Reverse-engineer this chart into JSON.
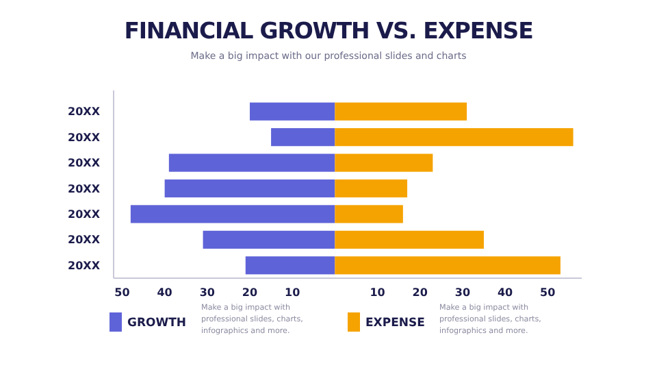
{
  "chart_data": {
    "type": "bar",
    "orientation": "horizontal",
    "stacked": true,
    "title": "FINANCIAL GROWTH VS. EXPENSE",
    "subtitle": "Make a big impact with our professional slides and charts",
    "categories": [
      "20XX",
      "20XX",
      "20XX",
      "20XX",
      "20XX",
      "20XX",
      "20XX"
    ],
    "series": [
      {
        "name": "GROWTH",
        "color": "#5f63d8",
        "values": [
          -20,
          -15,
          -39,
          -40,
          -48,
          -31,
          -21
        ]
      },
      {
        "name": "EXPENSE",
        "color": "#f5a300",
        "values": [
          31,
          56,
          23,
          17,
          16,
          35,
          53
        ]
      }
    ],
    "xlim": [
      -52,
      58
    ],
    "xticks": [
      {
        "value": -50,
        "label": "50"
      },
      {
        "value": -40,
        "label": "40"
      },
      {
        "value": -30,
        "label": "30"
      },
      {
        "value": -20,
        "label": "20"
      },
      {
        "value": -10,
        "label": "10"
      },
      10,
      20,
      30,
      40,
      50
    ],
    "legend": "bottom",
    "annotations": [
      "Make a big impact with professional slides, charts, infographics and more.",
      "Make a big impact with professional slides, charts, infographics and more."
    ]
  }
}
